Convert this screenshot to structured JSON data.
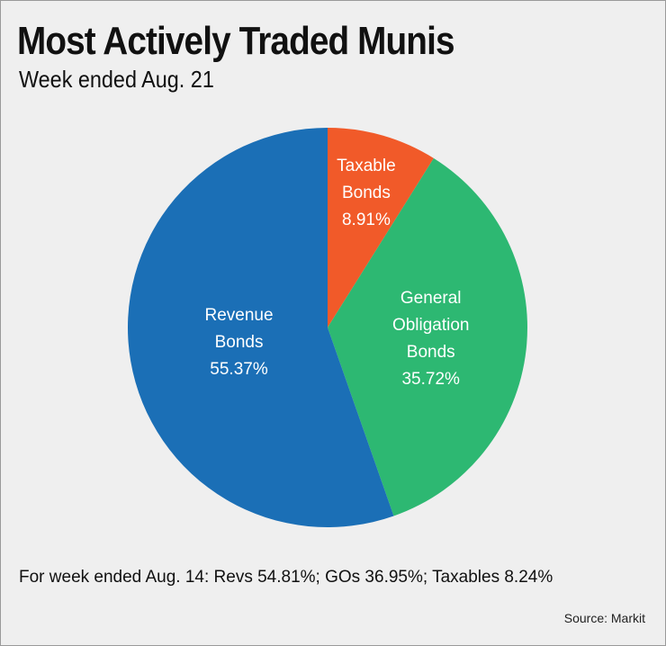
{
  "chart_data": {
    "type": "pie",
    "title": "Most Actively Traded Munis",
    "subtitle": "Week ended Aug. 21",
    "categories": [
      "Taxable Bonds",
      "General Obligation Bonds",
      "Revenue Bonds"
    ],
    "values": [
      8.91,
      35.72,
      55.37
    ],
    "value_labels": [
      "8.91%",
      "35.72%",
      "55.37%"
    ],
    "colors": [
      "#f15a29",
      "#2db872",
      "#1b6fb6"
    ],
    "note": "For week ended Aug. 14: Revs 54.81%; GOs 36.95%; Taxables 8.24%",
    "source": "Source: Markit"
  }
}
